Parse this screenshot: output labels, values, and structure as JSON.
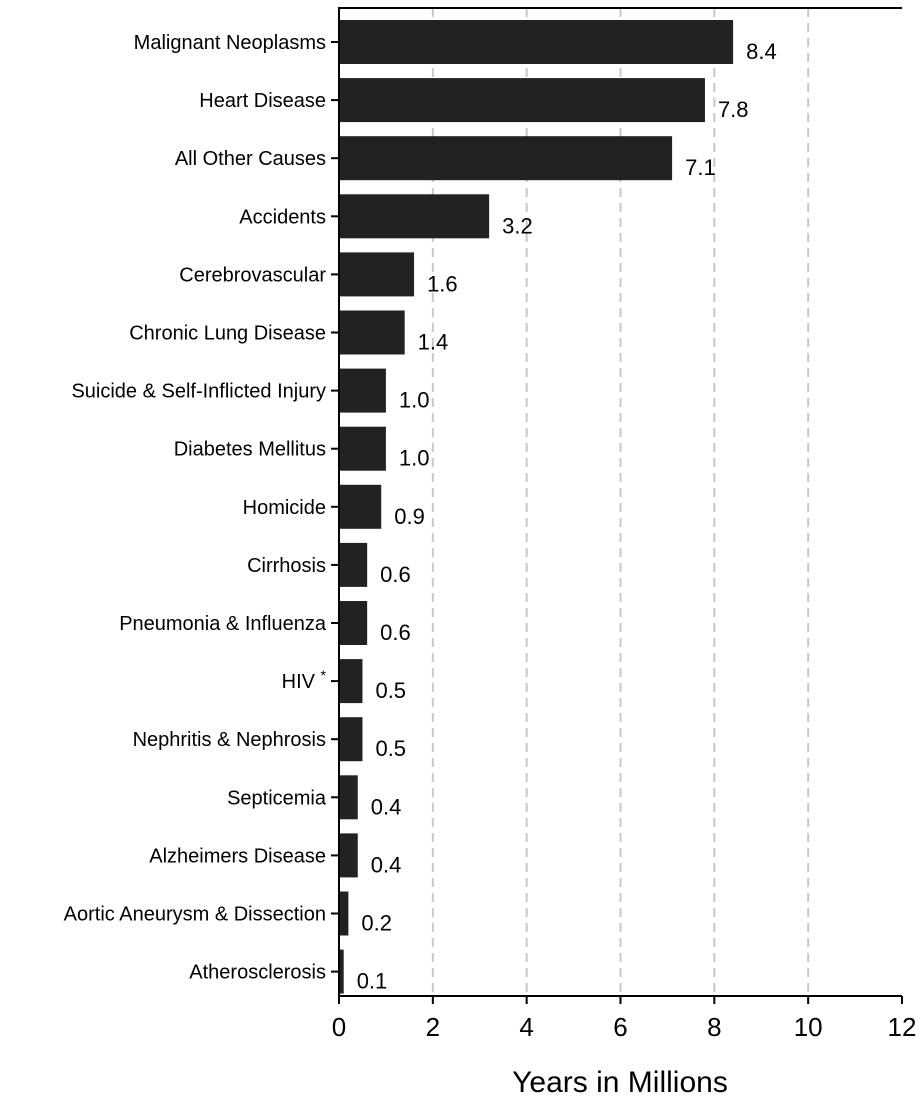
{
  "chart_data": {
    "type": "bar",
    "orientation": "horizontal",
    "title": "",
    "xlabel": "Years in Millions",
    "ylabel": "",
    "xlim": [
      0,
      12
    ],
    "x_ticks": [
      "0",
      "2",
      "4",
      "6",
      "8",
      "10",
      "12"
    ],
    "grid": "vertical dashed lines at x = 2, 4, 6, 8, 10",
    "legend": "none",
    "bar_color": "#222222",
    "grid_color": "#c8c8c8",
    "categories": [
      "Malignant Neoplasms",
      "Heart Disease",
      "All Other Causes",
      "Accidents",
      "Cerebrovascular",
      "Chronic Lung Disease",
      "Suicide & Self-Inflicted Injury",
      "Diabetes Mellitus",
      "Homicide",
      "Cirrhosis",
      "Pneumonia & Influenza",
      "HIV",
      "Nephritis & Nephrosis",
      "Septicemia",
      "Alzheimers Disease",
      "Aortic Aneurysm & Dissection",
      "Atherosclerosis"
    ],
    "category_markers": [
      "",
      "",
      "",
      "",
      "",
      "",
      "",
      "",
      "",
      "",
      "",
      "*",
      "",
      "",
      "",
      "",
      ""
    ],
    "values": [
      8.4,
      7.8,
      7.1,
      3.2,
      1.6,
      1.4,
      1.0,
      1.0,
      0.9,
      0.6,
      0.6,
      0.5,
      0.5,
      0.4,
      0.4,
      0.2,
      0.1
    ],
    "value_labels": [
      "8.4",
      "7.8",
      "7.1",
      "3.2",
      "1.6",
      "1.4",
      "1.0",
      "1.0",
      "0.9",
      "0.6",
      "0.6",
      "0.5",
      "0.5",
      "0.4",
      "0.4",
      "0.2",
      "0.1"
    ]
  }
}
